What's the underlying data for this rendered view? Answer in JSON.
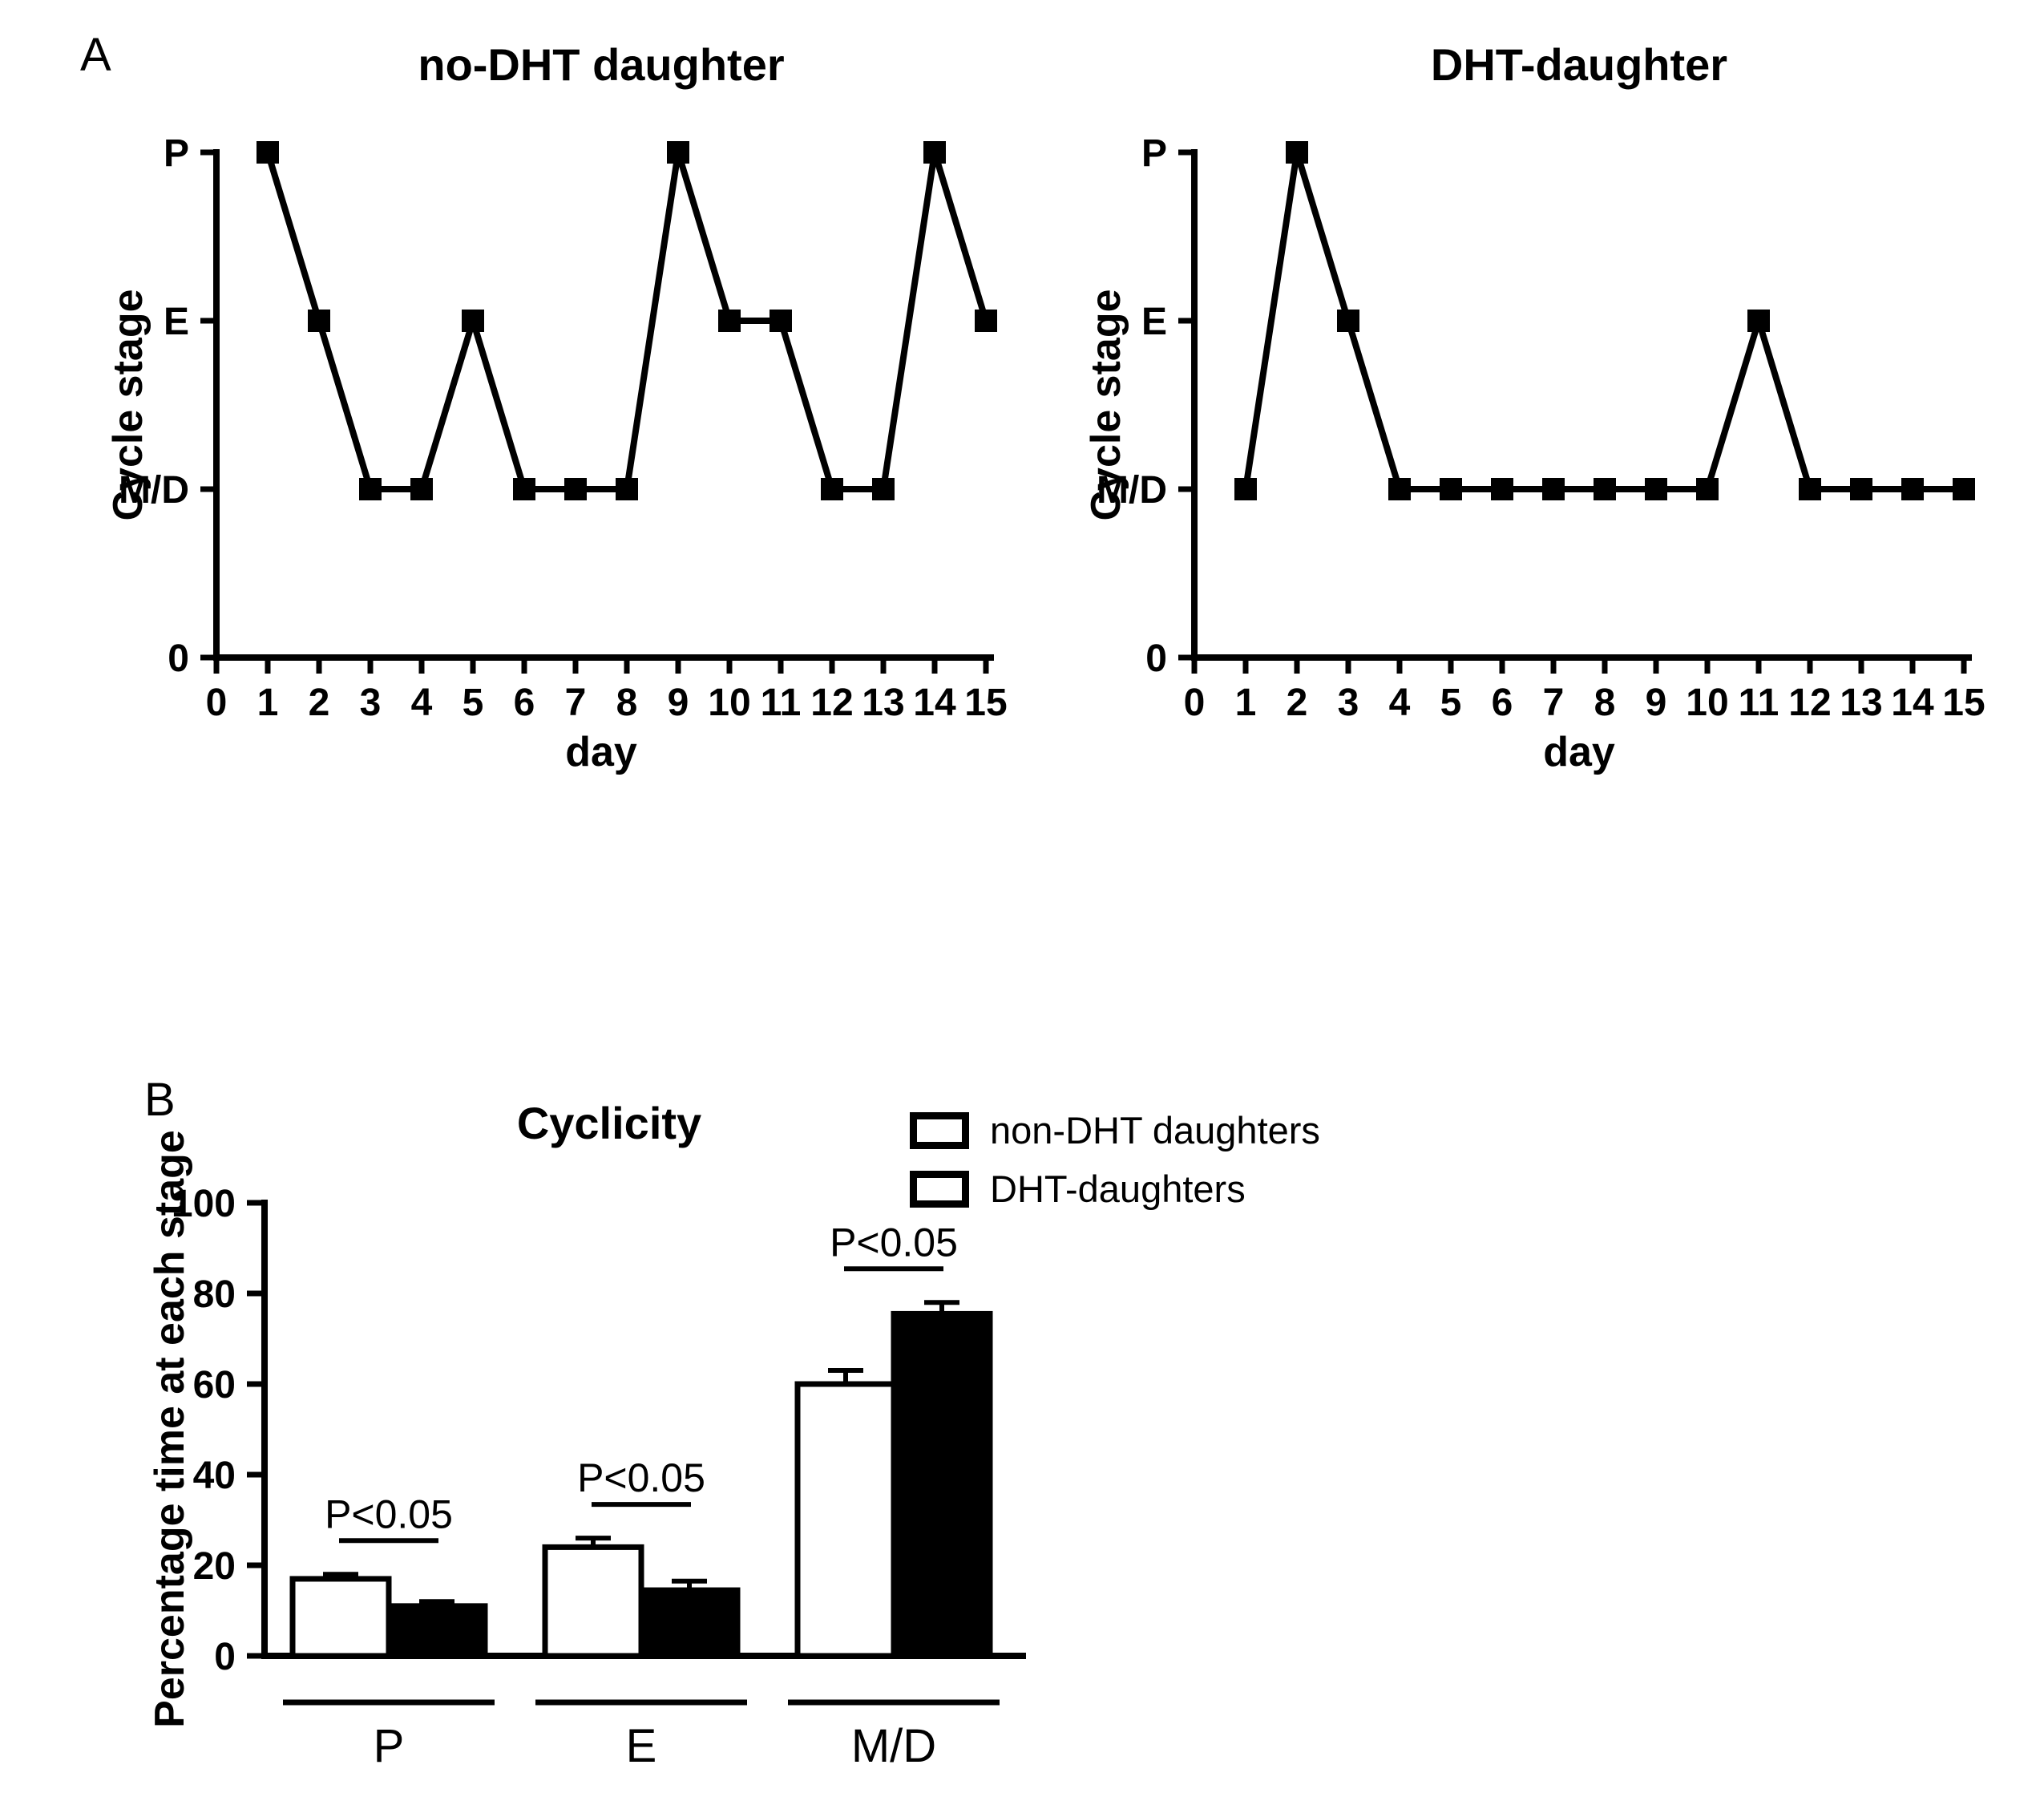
{
  "figure": {
    "panel_a_label": "A",
    "panel_b_label": "B",
    "ink_color": "#000000",
    "background_color": "#ffffff"
  },
  "chart_data": [
    {
      "type": "line",
      "title": "no-DHT daughter",
      "xlabel": "day",
      "ylabel": "Cycle stage",
      "x_ticks": [
        0,
        1,
        2,
        3,
        4,
        5,
        6,
        7,
        8,
        9,
        10,
        11,
        12,
        13,
        14,
        15
      ],
      "y_categories": [
        "0",
        "M/D",
        "E",
        "P"
      ],
      "x": [
        1,
        2,
        3,
        4,
        5,
        6,
        7,
        8,
        9,
        10,
        11,
        12,
        13,
        14,
        15
      ],
      "stages": [
        "P",
        "E",
        "M/D",
        "M/D",
        "E",
        "M/D",
        "M/D",
        "M/D",
        "P",
        "E",
        "E",
        "M/D",
        "M/D",
        "P",
        "E"
      ],
      "marker": "filled-square",
      "line_color": "#000000",
      "grid": false
    },
    {
      "type": "line",
      "title": "DHT-daughter",
      "xlabel": "day",
      "ylabel": "Cycle stage",
      "x_ticks": [
        0,
        1,
        2,
        3,
        4,
        5,
        6,
        7,
        8,
        9,
        10,
        11,
        12,
        13,
        14,
        15
      ],
      "y_categories": [
        "0",
        "M/D",
        "E",
        "P"
      ],
      "x": [
        1,
        2,
        3,
        4,
        5,
        6,
        7,
        8,
        9,
        10,
        11,
        12,
        13,
        14,
        15
      ],
      "stages": [
        "M/D",
        "P",
        "E",
        "M/D",
        "M/D",
        "M/D",
        "M/D",
        "M/D",
        "M/D",
        "M/D",
        "E",
        "M/D",
        "M/D",
        "M/D",
        "M/D"
      ],
      "marker": "filled-square",
      "line_color": "#000000",
      "grid": false
    },
    {
      "type": "bar",
      "title": "Cyclicity",
      "xlabel": "",
      "ylabel": "Percentage time at each stage",
      "ylim": [
        0,
        100
      ],
      "yticks": [
        0,
        20,
        40,
        60,
        80,
        100
      ],
      "categories": [
        "P",
        "E",
        "M/D"
      ],
      "series": [
        {
          "name": "non-DHT daughters",
          "fill": "#ffffff",
          "legend_fill": "#ffffff",
          "values": [
            17,
            24,
            60
          ],
          "errors": [
            1,
            2,
            3
          ]
        },
        {
          "name": "DHT-daughters",
          "fill": "#000000",
          "legend_fill": "#ffffff",
          "values": [
            11,
            14.5,
            75.5
          ],
          "errors": [
            1,
            2,
            2.5
          ]
        }
      ],
      "sig_annotations": [
        {
          "category": "P",
          "text": "P<0.05"
        },
        {
          "category": "E",
          "text": "P<0.05"
        },
        {
          "category": "M/D",
          "text": "P<0.05"
        }
      ],
      "legend_position": "top-right",
      "grid": false
    }
  ]
}
